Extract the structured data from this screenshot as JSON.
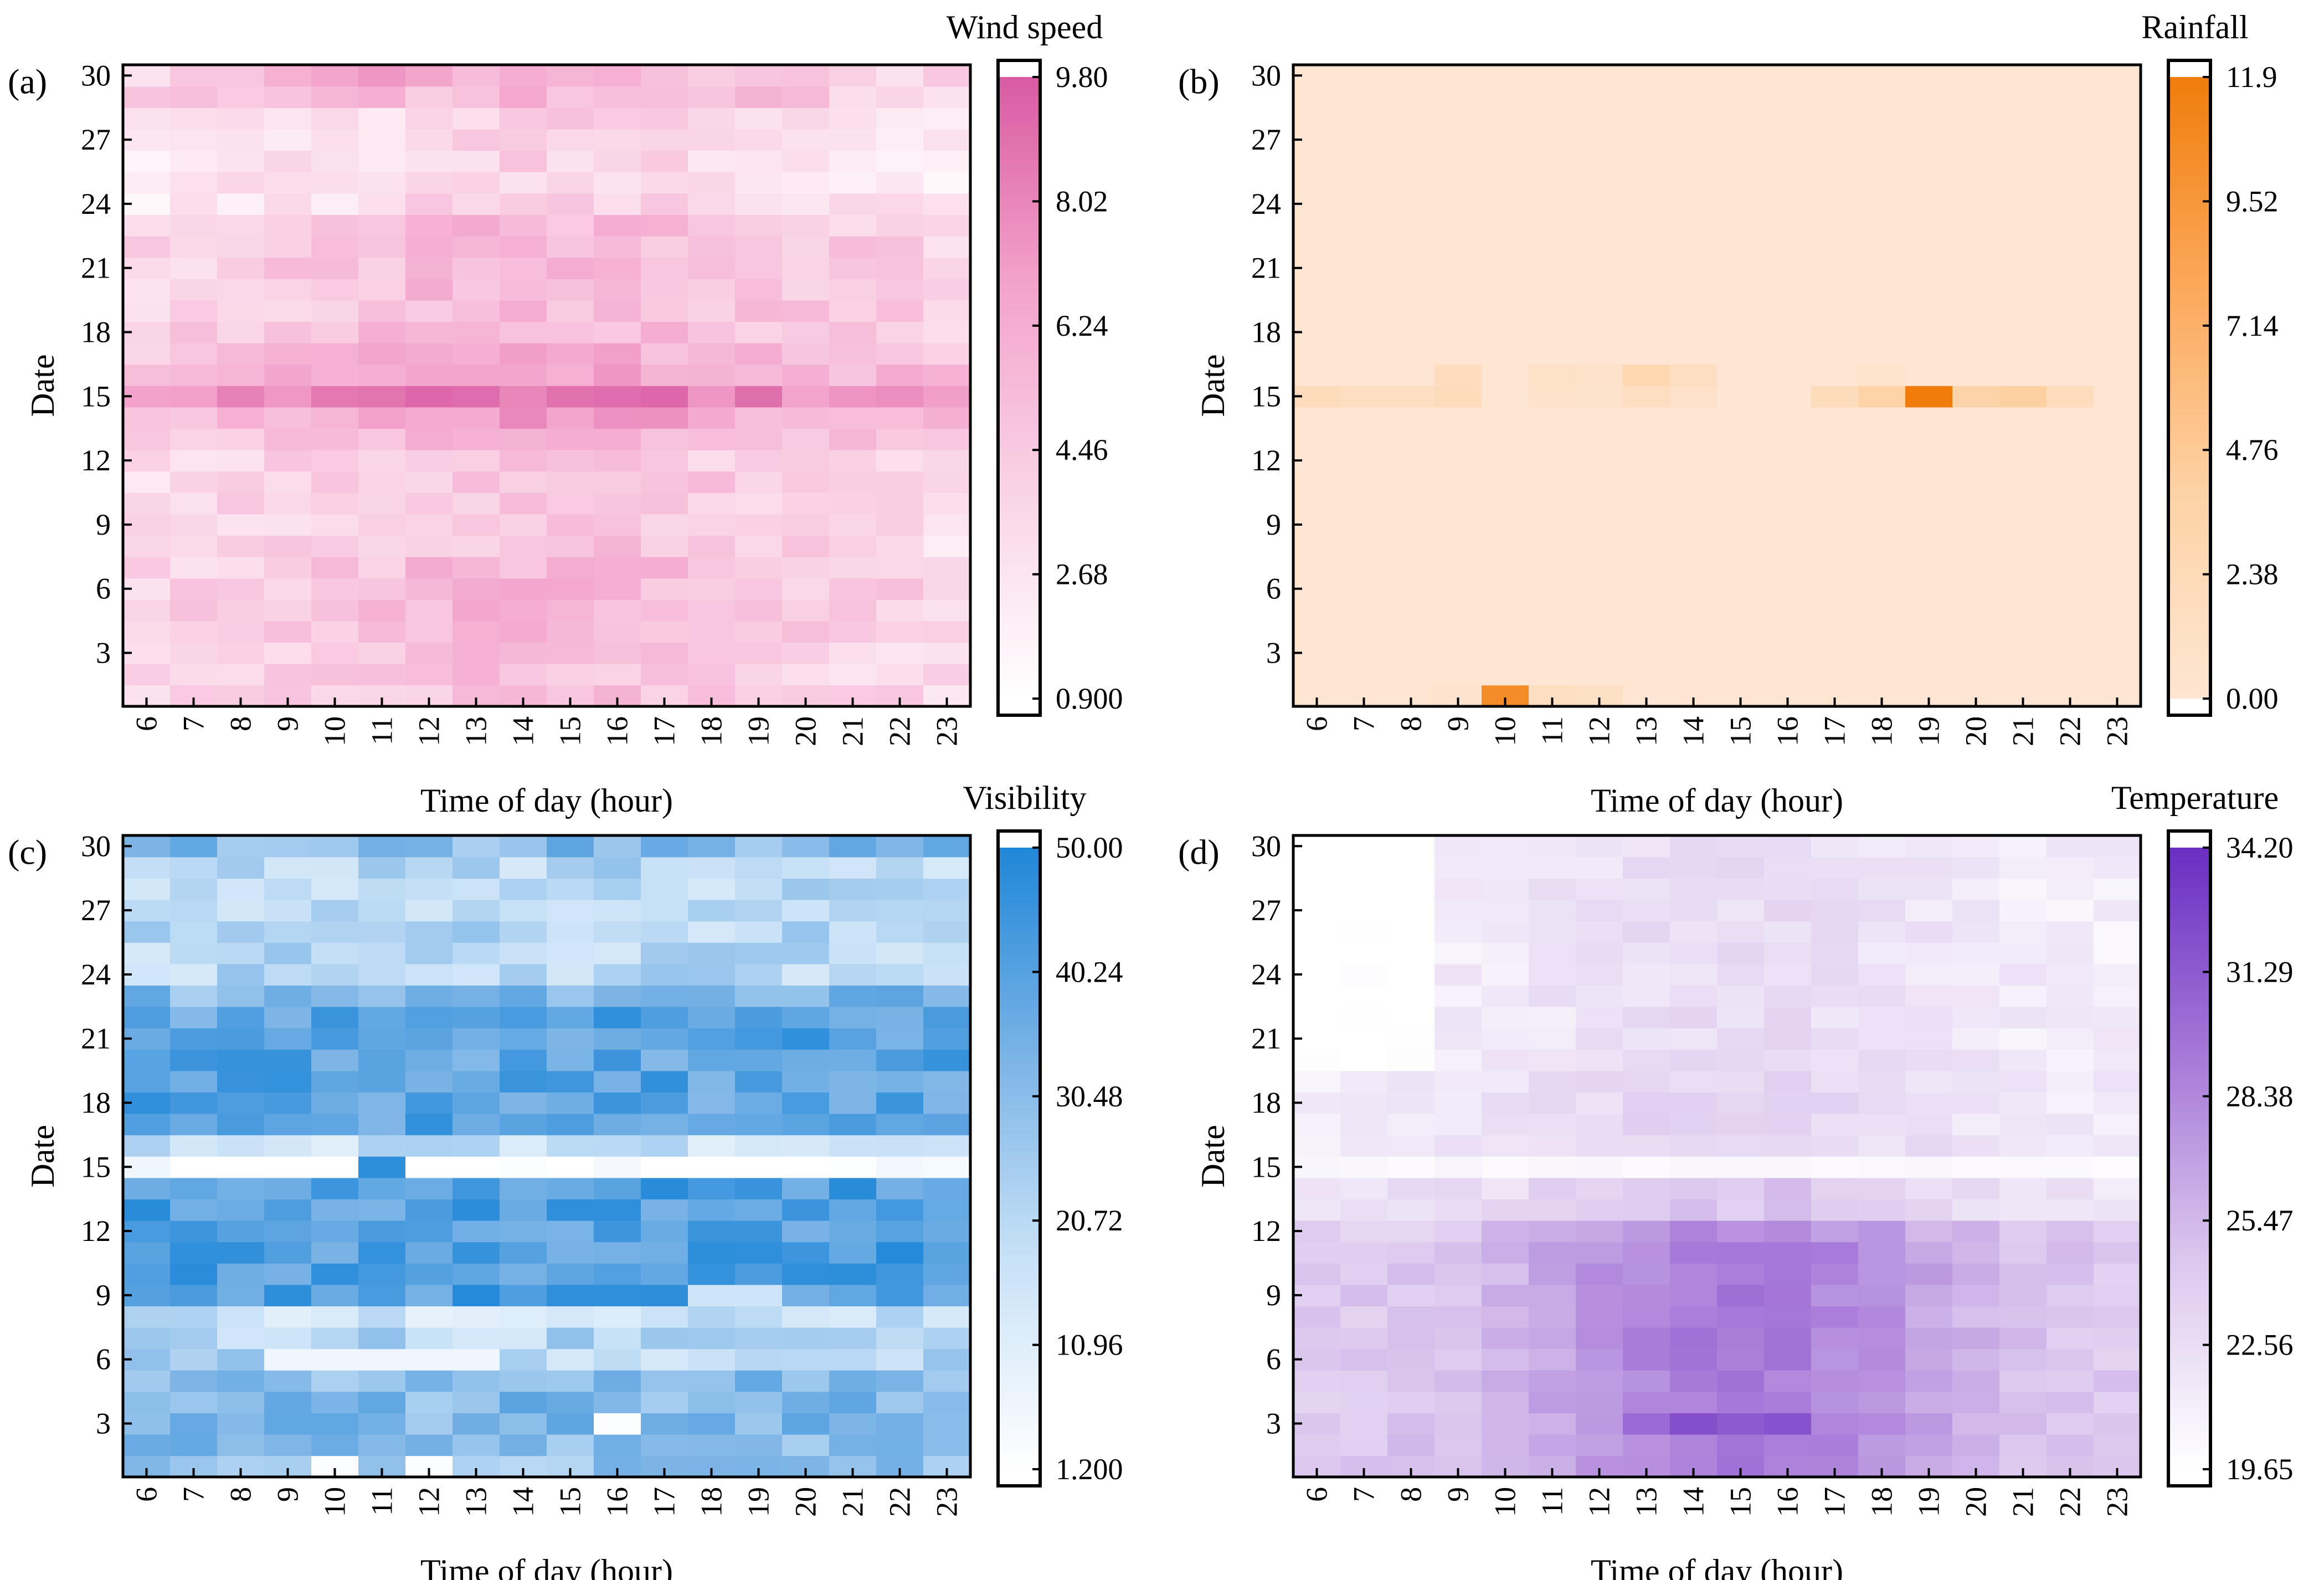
{
  "chart_data": [
    {
      "type": "heatmap",
      "panel_label": "(a)",
      "variable": "Wind speed",
      "colorbar_title": "Wind speed",
      "colorbar_ticks": [
        "9.80",
        "8.02",
        "6.24",
        "4.46",
        "2.68",
        "0.900"
      ],
      "vmin": 0.9,
      "vmax": 9.8,
      "colors": [
        "#ffffff",
        "#fad3e6",
        "#f3a3cb",
        "#d95aa2"
      ],
      "xlabel": "Time of day (hour)",
      "ylabel": "Date",
      "x_ticks": [
        "6",
        "7",
        "8",
        "9",
        "10",
        "11",
        "12",
        "13",
        "14",
        "15",
        "16",
        "17",
        "18",
        "19",
        "20",
        "21",
        "22",
        "23"
      ],
      "y_ticks": [
        "3",
        "6",
        "9",
        "12",
        "15",
        "18",
        "21",
        "24",
        "27",
        "30"
      ],
      "pattern": "wind"
    },
    {
      "type": "heatmap",
      "panel_label": "(b)",
      "variable": "Rainfall",
      "colorbar_title": "Rainfall",
      "colorbar_ticks": [
        "11.9",
        "9.52",
        "7.14",
        "4.76",
        "2.38",
        "0.00"
      ],
      "vmin": 0.0,
      "vmax": 11.9,
      "colors": [
        "#fee6d2",
        "#fdd2a5",
        "#fca85a",
        "#f07d0b"
      ],
      "xlabel": "Time of day (hour)",
      "ylabel": "Date",
      "x_ticks": [
        "6",
        "7",
        "8",
        "9",
        "10",
        "11",
        "12",
        "13",
        "14",
        "15",
        "16",
        "17",
        "18",
        "19",
        "20",
        "21",
        "22",
        "23"
      ],
      "y_ticks": [
        "3",
        "6",
        "9",
        "12",
        "15",
        "18",
        "21",
        "24",
        "27",
        "30"
      ],
      "pattern": "rain"
    },
    {
      "type": "heatmap",
      "panel_label": "(c)",
      "variable": "Visibility",
      "colorbar_title": "Visibility",
      "colorbar_ticks": [
        "50.00",
        "40.24",
        "30.48",
        "20.72",
        "10.96",
        "1.200"
      ],
      "vmin": 1.2,
      "vmax": 50.0,
      "colors": [
        "#ffffff",
        "#c9e2f7",
        "#7ab3e6",
        "#1f87d8"
      ],
      "xlabel": "Time of day (hour)",
      "ylabel": "Date",
      "x_ticks": [
        "6",
        "7",
        "8",
        "9",
        "10",
        "11",
        "12",
        "13",
        "14",
        "15",
        "16",
        "17",
        "18",
        "19",
        "20",
        "21",
        "22",
        "23"
      ],
      "y_ticks": [
        "3",
        "6",
        "9",
        "12",
        "15",
        "18",
        "21",
        "24",
        "27",
        "30"
      ],
      "pattern": "vis"
    },
    {
      "type": "heatmap",
      "panel_label": "(d)",
      "variable": "Temperature",
      "colorbar_title": "Temperature",
      "colorbar_ticks": [
        "34.20",
        "31.29",
        "28.38",
        "25.47",
        "22.56",
        "19.65"
      ],
      "vmin": 19.65,
      "vmax": 34.2,
      "colors": [
        "#ffffff",
        "#dcc8ee",
        "#a678d8",
        "#6a2ec2"
      ],
      "xlabel": "Time of day (hour)",
      "ylabel": "Date",
      "x_ticks": [
        "6",
        "7",
        "8",
        "9",
        "10",
        "11",
        "12",
        "13",
        "14",
        "15",
        "16",
        "17",
        "18",
        "19",
        "20",
        "21",
        "22",
        "23"
      ],
      "y_ticks": [
        "3",
        "6",
        "9",
        "12",
        "15",
        "18",
        "21",
        "24",
        "27",
        "30"
      ],
      "pattern": "temp"
    }
  ]
}
